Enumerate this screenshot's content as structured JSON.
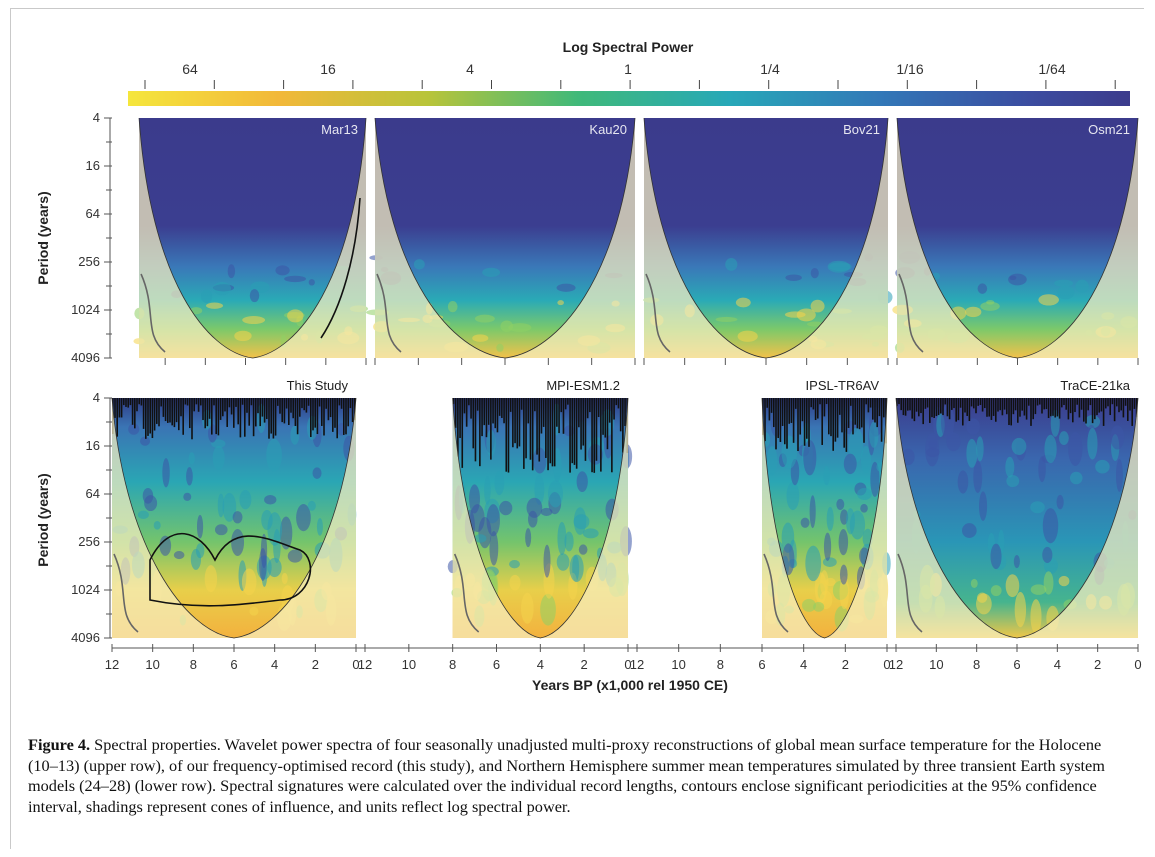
{
  "colorbar": {
    "title": "Log Spectral Power",
    "ticks": [
      "64",
      "16",
      "4",
      "1",
      "1/4",
      "1/16",
      "1/64"
    ]
  },
  "axes": {
    "ylabel": "Period (years)",
    "xlabel": "Years BP (x1,000 rel 1950 CE)",
    "y_ticks": [
      "4",
      "16",
      "64",
      "256",
      "1024",
      "4096"
    ]
  },
  "panels_top": [
    {
      "name": "Mar13",
      "x_start": 11.3,
      "x_end": 0
    },
    {
      "name": "Kau20",
      "x_start": 12,
      "x_end": 0
    },
    {
      "name": "Bov21",
      "x_start": 12,
      "x_end": 0
    },
    {
      "name": "Osm21",
      "x_start": 12,
      "x_end": 0
    }
  ],
  "panels_bottom": [
    {
      "name": "This Study",
      "x_start": 12,
      "x_end": 0
    },
    {
      "name": "MPI-ESM1.2",
      "x_start": 8,
      "x_end": 0
    },
    {
      "name": "IPSL-TR6AV",
      "x_start": 6,
      "x_end": 0
    },
    {
      "name": "TraCE-21ka",
      "x_start": 12,
      "x_end": 0
    }
  ],
  "x_tick_labels": [
    [
      "12",
      "10",
      "8",
      "6",
      "4",
      "2",
      "0"
    ],
    [
      "12",
      "10",
      "8",
      "6",
      "4",
      "2",
      "0"
    ],
    [
      "12",
      "10",
      "8",
      "6",
      "4",
      "2",
      "0"
    ],
    [
      "12",
      "10",
      "8",
      "6",
      "4",
      "2",
      "0"
    ]
  ],
  "caption": {
    "label": "Figure 4.",
    "text": " Spectral properties. Wavelet power spectra of four seasonally unadjusted multi-proxy reconstructions of global mean surface temperature for the Holocene (10–13) (upper row), of our frequency-optimised record (this study), and Northern Hemisphere summer mean temperatures simulated by three transient Earth system models (24–28) (lower row). Spectral signatures were calculated over the individual record lengths, contours enclose significant periodicities at the 95% confidence interval, shadings represent cones of influence, and units reflect log spectral power."
  },
  "colors": {
    "low_power": "#3b3b8c",
    "mid_power": "#2a9fb4",
    "high_power": "#f2e25a",
    "coi_shade": "#f6efc0"
  }
}
